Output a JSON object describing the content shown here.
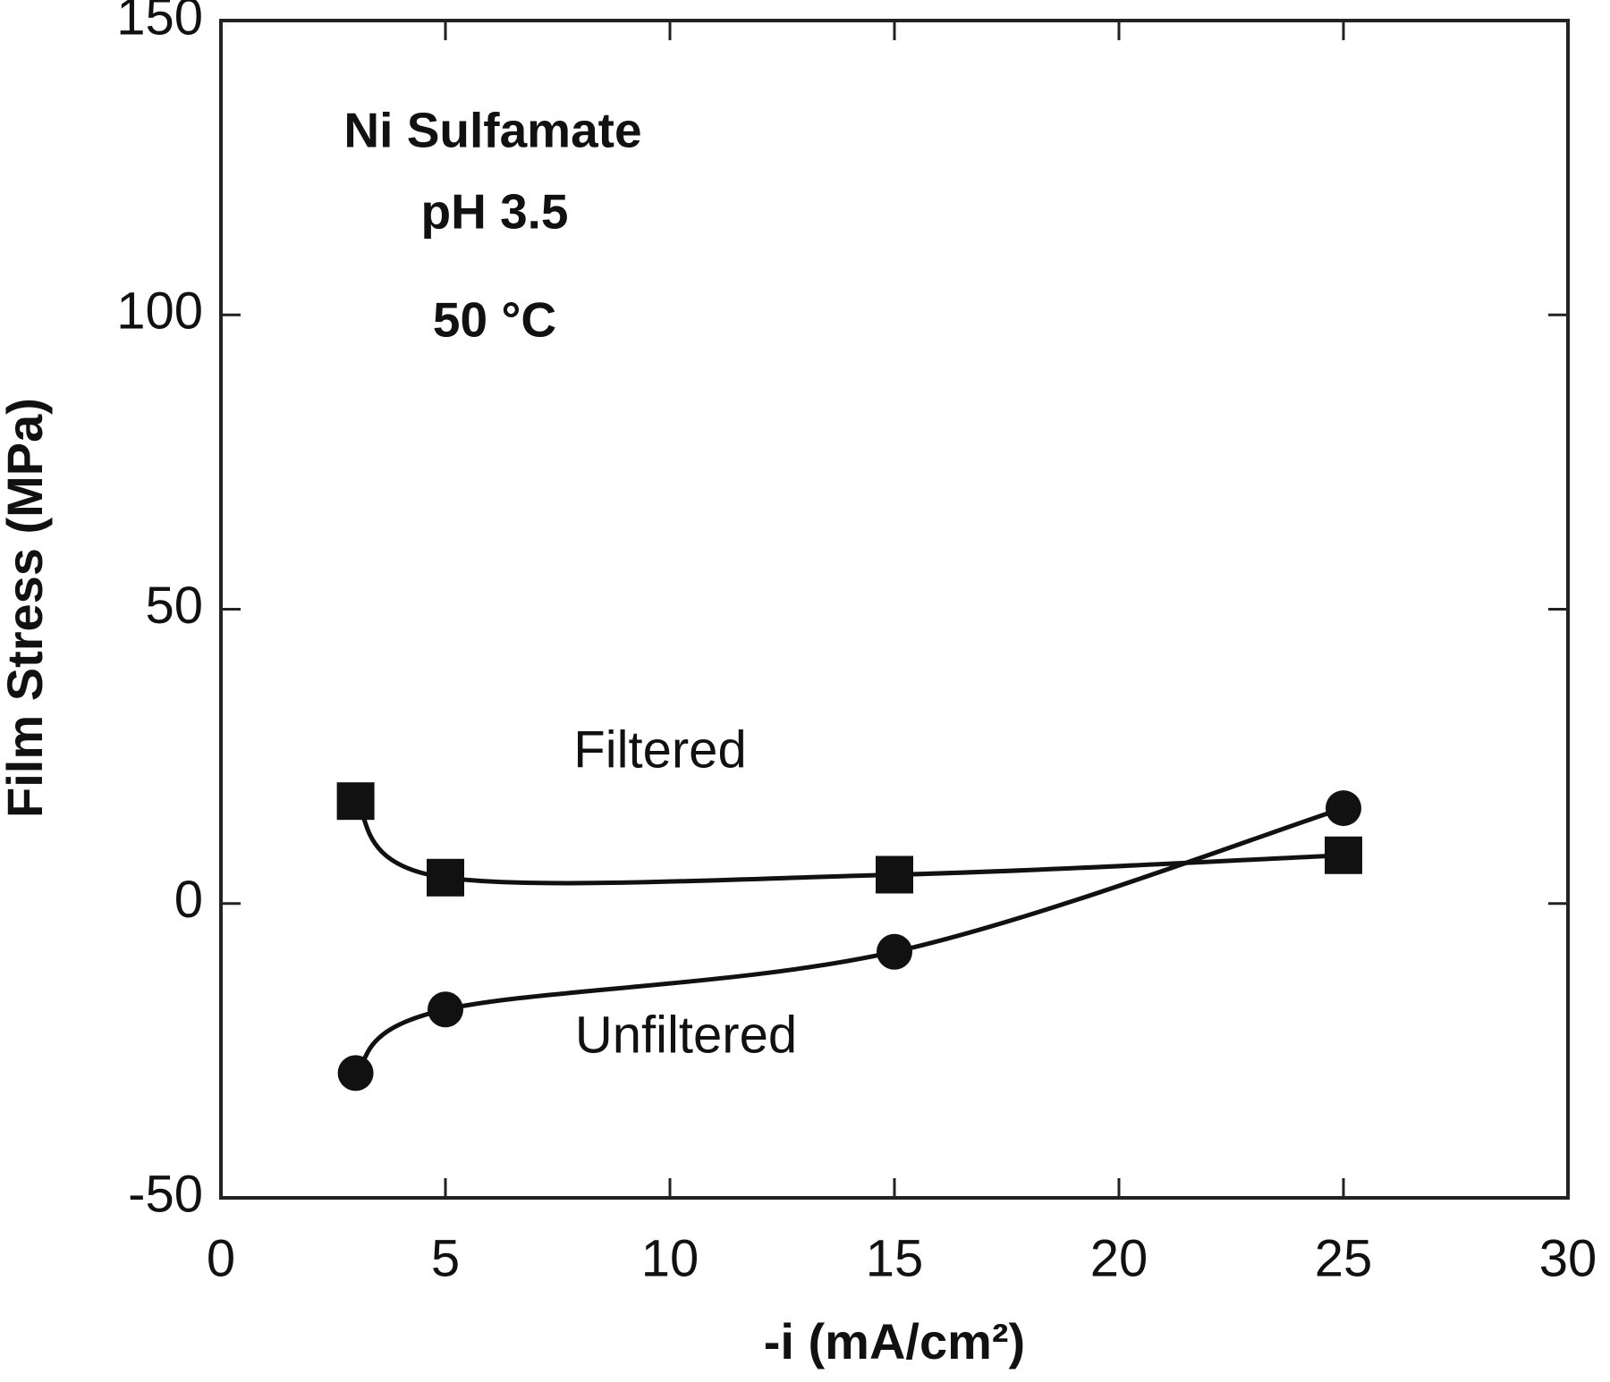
{
  "chart_data": {
    "type": "line",
    "xlabel": "-i (mA/cm²)",
    "ylabel": "Film Stress  (MPa)",
    "annotations": [
      "Ni Sulfamate",
      "pH 3.5",
      "50 °C"
    ],
    "x": [
      3,
      5,
      15,
      25
    ],
    "series": [
      {
        "name": "Filtered",
        "color": "#111111",
        "marker": "square",
        "values": [
          17.4,
          4.4,
          4.9,
          8.2
        ]
      },
      {
        "name": "Unfiltered",
        "color": "#111111",
        "marker": "circle",
        "values": [
          -28.8,
          -18,
          -8.2,
          16.2
        ]
      }
    ],
    "xlim": [
      0,
      30
    ],
    "xticks": [
      0,
      5,
      10,
      15,
      20,
      25,
      30
    ],
    "ylim": [
      -50,
      150
    ],
    "yticks": [
      -50,
      0,
      50,
      100,
      150
    ]
  }
}
